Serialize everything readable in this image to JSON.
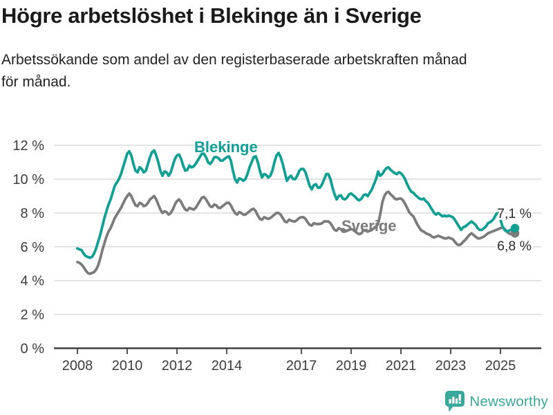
{
  "chart_data": {
    "type": "line",
    "title": "Högre arbetslöshet i Blekinge än i Sverige",
    "subtitle_lines": [
      "Arbetssökande som andel av den registerbaserade arbetskraften månad",
      "för månad."
    ],
    "x_start": "2008-01",
    "x_end": "2025-08",
    "x_unit": "month",
    "x_tick_labels": [
      "2008",
      "2010",
      "2012",
      "2014",
      "2017",
      "2019",
      "2021",
      "2023",
      "2025"
    ],
    "x_tick_month_index": [
      0,
      24,
      48,
      72,
      108,
      132,
      156,
      180,
      204
    ],
    "y_tick_labels": [
      "0 %",
      "2 %",
      "4 %",
      "6 %",
      "8 %",
      "10 %",
      "12 %"
    ],
    "y_ticks": [
      0,
      2,
      4,
      6,
      8,
      10,
      12
    ],
    "ylim": [
      0,
      12.6
    ],
    "grid": "horizontal",
    "legend_position": "inline-labels",
    "series": [
      {
        "name": "Blekinge",
        "color": "#0FA093",
        "end_label": "7,1 %",
        "end_value": 7.1,
        "values": [
          5.9,
          5.85,
          5.8,
          5.6,
          5.45,
          5.4,
          5.35,
          5.4,
          5.6,
          5.9,
          6.3,
          6.7,
          7.2,
          7.7,
          8.1,
          8.5,
          8.8,
          9.2,
          9.6,
          9.8,
          10.0,
          10.3,
          10.7,
          11.1,
          11.5,
          11.65,
          11.4,
          10.9,
          10.5,
          10.4,
          10.7,
          10.6,
          10.4,
          10.5,
          10.9,
          11.3,
          11.6,
          11.7,
          11.4,
          11.0,
          10.5,
          10.2,
          10.45,
          10.4,
          10.2,
          10.4,
          10.8,
          11.2,
          11.4,
          11.45,
          11.2,
          10.8,
          10.5,
          10.55,
          10.8,
          10.7,
          10.75,
          10.9,
          11.1,
          11.3,
          11.5,
          11.5,
          11.3,
          11.0,
          10.9,
          11.05,
          11.3,
          11.3,
          11.25,
          11.1,
          11.1,
          11.2,
          11.3,
          11.35,
          11.1,
          10.5,
          10.0,
          9.8,
          10.05,
          10.0,
          9.9,
          10.0,
          10.3,
          10.7,
          11.0,
          11.3,
          11.35,
          11.0,
          10.5,
          10.1,
          10.3,
          10.25,
          10.1,
          10.2,
          10.5,
          11.0,
          11.4,
          11.55,
          11.3,
          10.9,
          10.4,
          9.9,
          10.1,
          10.2,
          10.0,
          10.0,
          10.2,
          10.5,
          10.6,
          10.6,
          10.4,
          10.0,
          9.6,
          9.4,
          9.65,
          9.7,
          9.5,
          9.5,
          9.7,
          10.0,
          10.3,
          10.3,
          10.0,
          9.5,
          9.1,
          8.8,
          9.0,
          9.05,
          8.85,
          8.8,
          8.9,
          9.1,
          9.15,
          9.05,
          8.95,
          8.8,
          8.75,
          8.85,
          9.05,
          9.1,
          9.0,
          9.2,
          9.4,
          9.7,
          10.0,
          10.45,
          10.2,
          10.3,
          10.5,
          10.65,
          10.7,
          10.55,
          10.45,
          10.35,
          10.3,
          10.4,
          10.35,
          10.2,
          10.0,
          9.7,
          9.45,
          9.25,
          9.2,
          9.05,
          8.95,
          8.85,
          8.8,
          8.85,
          8.7,
          8.6,
          8.4,
          8.2,
          8.0,
          7.9,
          8.0,
          7.9,
          7.8,
          7.85,
          7.8,
          7.85,
          7.8,
          7.75,
          7.6,
          7.4,
          7.2,
          7.0,
          7.15,
          7.2,
          7.3,
          7.4,
          7.5,
          7.4,
          7.3,
          7.1,
          7.0,
          7.0,
          7.1,
          7.2,
          7.4,
          7.45,
          7.55,
          7.7,
          7.95,
          8.0,
          7.6,
          7.2,
          7.0,
          6.9,
          6.95,
          7.0,
          7.05,
          7.1
        ]
      },
      {
        "name": "Sverige",
        "color": "#7B7B7B",
        "end_label": "6,8 %",
        "end_value": 6.8,
        "values": [
          5.1,
          5.05,
          4.95,
          4.8,
          4.6,
          4.45,
          4.4,
          4.45,
          4.5,
          4.65,
          4.9,
          5.3,
          5.8,
          6.2,
          6.6,
          6.9,
          7.1,
          7.4,
          7.7,
          7.9,
          8.1,
          8.3,
          8.55,
          8.8,
          9.0,
          9.15,
          9.0,
          8.7,
          8.45,
          8.4,
          8.6,
          8.55,
          8.4,
          8.45,
          8.6,
          8.8,
          8.9,
          9.0,
          8.8,
          8.5,
          8.2,
          8.0,
          8.1,
          8.05,
          7.9,
          8.0,
          8.2,
          8.5,
          8.7,
          8.8,
          8.65,
          8.4,
          8.2,
          8.15,
          8.3,
          8.25,
          8.2,
          8.3,
          8.5,
          8.7,
          8.9,
          8.95,
          8.8,
          8.6,
          8.4,
          8.35,
          8.5,
          8.45,
          8.3,
          8.3,
          8.4,
          8.5,
          8.6,
          8.6,
          8.45,
          8.2,
          8.0,
          7.9,
          8.05,
          8.0,
          7.9,
          7.9,
          8.0,
          8.1,
          8.2,
          8.25,
          8.1,
          7.85,
          7.65,
          7.6,
          7.75,
          7.7,
          7.65,
          7.7,
          7.8,
          7.9,
          8.0,
          8.0,
          7.9,
          7.7,
          7.5,
          7.45,
          7.6,
          7.55,
          7.5,
          7.5,
          7.6,
          7.7,
          7.75,
          7.75,
          7.65,
          7.45,
          7.3,
          7.25,
          7.4,
          7.35,
          7.35,
          7.35,
          7.4,
          7.5,
          7.5,
          7.5,
          7.4,
          7.2,
          7.0,
          6.95,
          7.1,
          7.05,
          6.9,
          6.9,
          6.95,
          7.0,
          7.05,
          7.0,
          6.9,
          6.8,
          6.75,
          6.8,
          7.0,
          6.95,
          6.9,
          6.95,
          7.0,
          7.1,
          7.2,
          7.35,
          7.9,
          8.6,
          9.0,
          9.2,
          9.25,
          9.1,
          9.0,
          8.85,
          8.8,
          8.85,
          8.85,
          8.75,
          8.55,
          8.3,
          8.05,
          7.9,
          7.8,
          7.55,
          7.3,
          7.1,
          6.95,
          6.9,
          6.8,
          6.75,
          6.7,
          6.6,
          6.55,
          6.6,
          6.65,
          6.6,
          6.55,
          6.5,
          6.5,
          6.55,
          6.5,
          6.45,
          6.3,
          6.15,
          6.1,
          6.15,
          6.3,
          6.4,
          6.55,
          6.7,
          6.8,
          6.7,
          6.6,
          6.5,
          6.5,
          6.55,
          6.6,
          6.7,
          6.8,
          6.85,
          6.9,
          6.95,
          7.0,
          7.05,
          7.1,
          7.15,
          7.05,
          6.9,
          6.8,
          6.75,
          6.8,
          6.8
        ]
      }
    ]
  },
  "colors": {
    "blekinge": "#0FA093",
    "sverige": "#7B7B7B",
    "grid": "#D8D8D8",
    "axis": "#404040",
    "axis_text": "#3C3C3C",
    "value_text": "#2B2B2B",
    "title_text": "#1A1A1A",
    "logo": "#38A89B"
  },
  "footer": {
    "brand": "Newsworthy"
  }
}
